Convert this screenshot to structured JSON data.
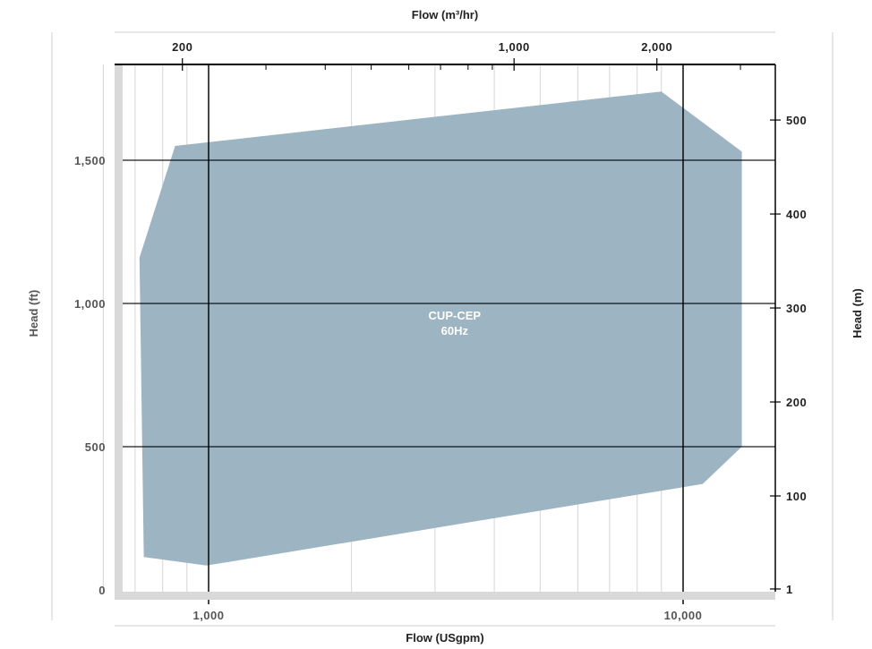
{
  "chart_data": {
    "type": "area",
    "series": [
      {
        "name": "CUP-CEP",
        "label_lines": [
          "CUP-CEP",
          "60Hz"
        ],
        "polygon_usgpm_ft": [
          [
            715,
            1160
          ],
          [
            850,
            1550
          ],
          [
            9000,
            1740
          ],
          [
            13300,
            1530
          ],
          [
            13300,
            500
          ],
          [
            11000,
            370
          ],
          [
            990,
            85
          ],
          [
            730,
            115
          ]
        ]
      }
    ],
    "x_bottom": {
      "label": "Flow (USgpm)",
      "scale": "log",
      "range": [
        550,
        16000
      ],
      "tick_labels": [
        "1,000",
        "10,000"
      ],
      "tick_values": [
        1000,
        10000
      ]
    },
    "x_top": {
      "label": "Flow (m³/hr)",
      "scale": "log",
      "tick_labels": [
        "200",
        "1,000",
        "2,000"
      ],
      "tick_values": [
        200,
        1000,
        2000
      ],
      "minor_ticks": [
        300,
        400,
        500,
        600,
        700,
        800,
        900,
        3000
      ]
    },
    "y_left": {
      "label": "Head (ft)",
      "scale": "linear",
      "range": [
        0,
        1850
      ],
      "tick_labels": [
        "0",
        "500",
        "1,000",
        "1,500"
      ],
      "tick_values": [
        0,
        500,
        1000,
        1500
      ]
    },
    "y_right": {
      "label": "Head (m)",
      "tick_labels": [
        "1",
        "100",
        "200",
        "300",
        "400",
        "500"
      ],
      "tick_values": [
        1,
        100,
        200,
        300,
        400,
        500
      ]
    },
    "minor_gridlines_usgpm": [
      600,
      700,
      800,
      900,
      2000,
      3000,
      4000,
      5000,
      6000,
      7000,
      8000,
      9000
    ],
    "colors": {
      "region_fill": "#9db5c2",
      "region_label": "#ffffff",
      "major_grid": "#000000",
      "minor_grid": "#dcdcdc",
      "axis_band": "#d9d9d9",
      "text": "#222222",
      "muted_text": "#555555"
    }
  }
}
